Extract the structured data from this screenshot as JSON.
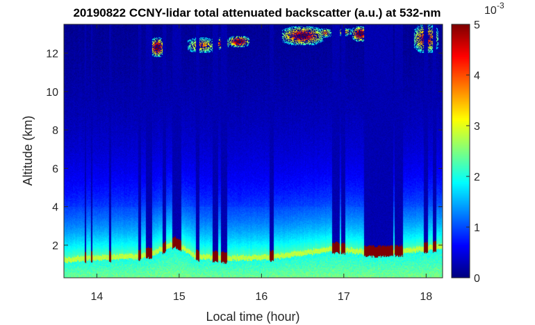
{
  "chart_data": {
    "type": "heatmap",
    "title": "20190822 CCNY-lidar total attenuated backscatter (a.u.) at 532-nm",
    "xlabel": "Local time (hour)",
    "ylabel": "Altitude (km)",
    "xlim": [
      13.6,
      18.2
    ],
    "ylim": [
      0.3,
      13.5
    ],
    "xticks": [
      14,
      15,
      16,
      17,
      18
    ],
    "yticks": [
      2,
      4,
      6,
      8,
      10,
      12
    ],
    "colorbar": {
      "min": 0,
      "max": 5,
      "ticks": [
        0,
        1,
        2,
        3,
        4,
        5
      ],
      "exponent_base": "10",
      "exponent": "-3",
      "colormap": "jet"
    },
    "boundary_layer_top_km": [
      {
        "time": 13.62,
        "km": 1.4
      },
      {
        "time": 13.85,
        "km": 1.5
      },
      {
        "time": 14.1,
        "km": 1.55
      },
      {
        "time": 14.5,
        "km": 1.6
      },
      {
        "time": 14.7,
        "km": 1.8
      },
      {
        "time": 14.95,
        "km": 2.3
      },
      {
        "time": 15.2,
        "km": 1.6
      },
      {
        "time": 15.5,
        "km": 1.5
      },
      {
        "time": 16.1,
        "km": 1.55
      },
      {
        "time": 16.9,
        "km": 2.0
      },
      {
        "time": 17.3,
        "km": 1.8
      },
      {
        "time": 17.7,
        "km": 1.85
      },
      {
        "time": 18.15,
        "km": 2.1
      }
    ],
    "cloud_layers": [
      {
        "t_start": 14.65,
        "t_end": 14.82,
        "km_bottom": 11.8,
        "km_top": 12.8,
        "peak": 5.0
      },
      {
        "t_start": 15.1,
        "t_end": 15.45,
        "km_bottom": 12.0,
        "km_top": 12.8,
        "peak": 3.0
      },
      {
        "t_start": 15.45,
        "t_end": 15.6,
        "km_bottom": 12.2,
        "km_top": 12.8,
        "peak": 5.0
      },
      {
        "t_start": 15.6,
        "t_end": 15.85,
        "km_bottom": 12.3,
        "km_top": 12.9,
        "peak": 5.0
      },
      {
        "t_start": 16.25,
        "t_end": 16.75,
        "km_bottom": 12.4,
        "km_top": 13.4,
        "peak": 4.5
      },
      {
        "t_start": 16.7,
        "t_end": 16.85,
        "km_bottom": 12.8,
        "km_top": 13.3,
        "peak": 3.0
      },
      {
        "t_start": 16.9,
        "t_end": 17.1,
        "km_bottom": 12.9,
        "km_top": 13.3,
        "peak": 3.0
      },
      {
        "t_start": 17.1,
        "t_end": 17.3,
        "km_bottom": 12.6,
        "km_top": 13.4,
        "peak": 5.0
      },
      {
        "t_start": 17.85,
        "t_end": 18.15,
        "km_bottom": 12.0,
        "km_top": 13.5,
        "peak": 4.0
      }
    ],
    "signal_dropouts_hour": [
      {
        "t_start": 13.85,
        "t_end": 13.87
      },
      {
        "t_start": 13.93,
        "t_end": 13.95
      },
      {
        "t_start": 14.15,
        "t_end": 14.17
      },
      {
        "t_start": 14.5,
        "t_end": 14.54
      },
      {
        "t_start": 14.6,
        "t_end": 14.67
      },
      {
        "t_start": 14.8,
        "t_end": 14.84
      },
      {
        "t_start": 14.92,
        "t_end": 15.03
      },
      {
        "t_start": 15.2,
        "t_end": 15.25
      },
      {
        "t_start": 15.41,
        "t_end": 15.47
      },
      {
        "t_start": 15.51,
        "t_end": 15.58
      },
      {
        "t_start": 16.1,
        "t_end": 16.15
      },
      {
        "t_start": 16.86,
        "t_end": 16.95
      },
      {
        "t_start": 16.97,
        "t_end": 17.02
      },
      {
        "t_start": 17.25,
        "t_end": 17.6
      },
      {
        "t_start": 17.62,
        "t_end": 17.72
      },
      {
        "t_start": 17.97,
        "t_end": 18.02
      },
      {
        "t_start": 18.08,
        "t_end": 18.12
      }
    ]
  }
}
